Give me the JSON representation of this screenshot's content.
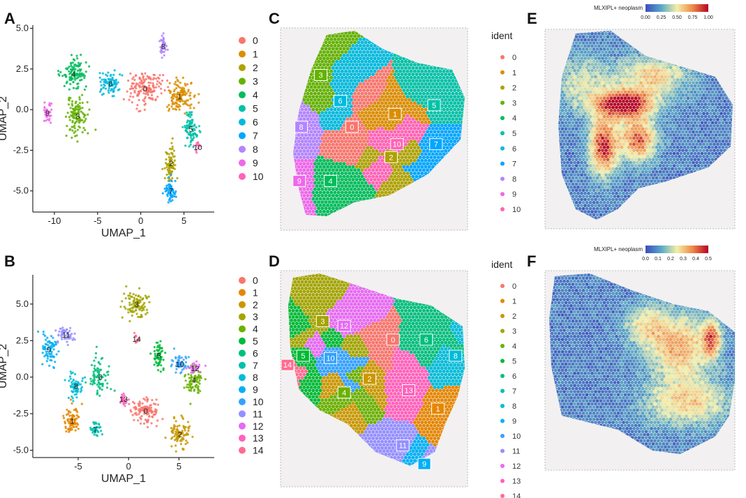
{
  "panels": {
    "A": "A",
    "B": "B",
    "C": "C",
    "D": "D",
    "E": "E",
    "F": "F"
  },
  "chart_data": [
    {
      "id": "A",
      "type": "scatter",
      "title": "",
      "xlabel": "UMAP_1",
      "ylabel": "UMAP_2",
      "xlim": [
        -12.5,
        8.5
      ],
      "ylim": [
        -6.3,
        5.2
      ],
      "xticks": [
        -10,
        -5,
        0,
        5
      ],
      "yticks": [
        -5.0,
        -2.5,
        0.0,
        2.5,
        5.0
      ],
      "ytick_labels": [
        "-5.0",
        "-2.5",
        "0.0",
        "2.5",
        "5.0"
      ],
      "xtick_labels": [
        "-10",
        "-5",
        "0",
        "5"
      ],
      "legend_position": "right",
      "clusters": [
        {
          "name": "0",
          "color": "#F8766D",
          "center": [
            0.5,
            1.3
          ],
          "spread": [
            1.8,
            0.9
          ],
          "n": 160
        },
        {
          "name": "1",
          "color": "#DB8E00",
          "center": [
            4.5,
            0.8
          ],
          "spread": [
            1.3,
            0.9
          ],
          "n": 130
        },
        {
          "name": "2",
          "color": "#AEA200",
          "center": [
            3.5,
            -3.3
          ],
          "spread": [
            0.6,
            1.1
          ],
          "n": 80
        },
        {
          "name": "3",
          "color": "#64B200",
          "center": [
            -7.3,
            -0.4
          ],
          "spread": [
            1.2,
            1.1
          ],
          "n": 110
        },
        {
          "name": "4",
          "color": "#00BD5C",
          "center": [
            -7.8,
            2.2
          ],
          "spread": [
            1.3,
            0.9
          ],
          "n": 110
        },
        {
          "name": "5",
          "color": "#00C1A7",
          "center": [
            5.8,
            -1.2
          ],
          "spread": [
            0.8,
            0.9
          ],
          "n": 80
        },
        {
          "name": "6",
          "color": "#00BADE",
          "center": [
            -3.5,
            1.6
          ],
          "spread": [
            1.2,
            0.7
          ],
          "n": 80
        },
        {
          "name": "7",
          "color": "#00A6FF",
          "center": [
            3.5,
            -5.0
          ],
          "spread": [
            0.6,
            0.6
          ],
          "n": 60
        },
        {
          "name": "8",
          "color": "#B385FF",
          "center": [
            2.6,
            3.9
          ],
          "spread": [
            0.5,
            0.6
          ],
          "n": 35
        },
        {
          "name": "9",
          "color": "#EF67EB",
          "center": [
            -10.8,
            -0.2
          ],
          "spread": [
            0.5,
            0.6
          ],
          "n": 35
        },
        {
          "name": "10",
          "color": "#FF63B6",
          "center": [
            6.6,
            -2.3
          ],
          "spread": [
            0.3,
            0.3
          ],
          "n": 12
        }
      ]
    },
    {
      "id": "B",
      "type": "scatter",
      "title": "",
      "xlabel": "UMAP_1",
      "ylabel": "UMAP_2",
      "xlim": [
        -9.5,
        8.5
      ],
      "ylim": [
        -5.5,
        7.0
      ],
      "xticks": [
        -5,
        0,
        5
      ],
      "xtick_labels": [
        "-5",
        "0",
        "5"
      ],
      "yticks": [
        -5.0,
        -2.5,
        0.0,
        2.5,
        5.0
      ],
      "ytick_labels": [
        "-5.0",
        "-2.5",
        "0.0",
        "2.5",
        "5.0"
      ],
      "legend_position": "right",
      "clusters": [
        {
          "name": "0",
          "color": "#F8766D",
          "center": [
            1.7,
            -2.3
          ],
          "spread": [
            1.3,
            0.8
          ],
          "n": 110
        },
        {
          "name": "1",
          "color": "#E58700",
          "center": [
            -5.6,
            -3.0
          ],
          "spread": [
            0.8,
            0.8
          ],
          "n": 80
        },
        {
          "name": "2",
          "color": "#C99800",
          "center": [
            5.1,
            -3.9
          ],
          "spread": [
            0.9,
            0.9
          ],
          "n": 90
        },
        {
          "name": "3",
          "color": "#A3A500",
          "center": [
            0.8,
            5.0
          ],
          "spread": [
            1.1,
            0.8
          ],
          "n": 100
        },
        {
          "name": "4",
          "color": "#6BB100",
          "center": [
            6.5,
            -0.2
          ],
          "spread": [
            0.8,
            0.9
          ],
          "n": 80
        },
        {
          "name": "5",
          "color": "#00BA38",
          "center": [
            3.0,
            1.5
          ],
          "spread": [
            0.6,
            0.9
          ],
          "n": 60
        },
        {
          "name": "6",
          "color": "#00BF7D",
          "center": [
            -2.8,
            0.0
          ],
          "spread": [
            1.0,
            1.1
          ],
          "n": 80
        },
        {
          "name": "7",
          "color": "#00C0AF",
          "center": [
            -3.3,
            -3.6
          ],
          "spread": [
            0.5,
            0.4
          ],
          "n": 40
        },
        {
          "name": "8",
          "color": "#00BCD8",
          "center": [
            -5.2,
            -0.6
          ],
          "spread": [
            0.7,
            0.8
          ],
          "n": 60
        },
        {
          "name": "9",
          "color": "#00B0F6",
          "center": [
            -7.9,
            1.9
          ],
          "spread": [
            0.8,
            1.0
          ],
          "n": 70
        },
        {
          "name": "10",
          "color": "#35A2FF",
          "center": [
            5.1,
            0.9
          ],
          "spread": [
            0.7,
            0.6
          ],
          "n": 50
        },
        {
          "name": "11",
          "color": "#9590FF",
          "center": [
            -6.2,
            2.9
          ],
          "spread": [
            0.7,
            0.5
          ],
          "n": 50
        },
        {
          "name": "12",
          "color": "#E76BF3",
          "center": [
            6.6,
            0.6
          ],
          "spread": [
            0.5,
            0.4
          ],
          "n": 30
        },
        {
          "name": "13",
          "color": "#FF62BC",
          "center": [
            -0.5,
            -1.5
          ],
          "spread": [
            0.4,
            0.4
          ],
          "n": 25
        },
        {
          "name": "14",
          "color": "#FF6C91",
          "center": [
            0.8,
            2.6
          ],
          "spread": [
            0.3,
            0.3
          ],
          "n": 15
        }
      ]
    },
    {
      "id": "C",
      "type": "heatmap",
      "title": "",
      "legend_title": "ident",
      "legend_entries": [
        "0",
        "1",
        "2",
        "3",
        "4",
        "5",
        "6",
        "7",
        "8",
        "9",
        "10"
      ],
      "legend_colors": [
        "#F8766D",
        "#DB8E00",
        "#AEA200",
        "#64B200",
        "#00BD5C",
        "#00C1A7",
        "#00BADE",
        "#00A6FF",
        "#B385FF",
        "#EF67EB",
        "#FF63B6"
      ],
      "cluster_labels": [
        {
          "name": "0",
          "pos": [
            0.38,
            0.49
          ]
        },
        {
          "name": "1",
          "pos": [
            0.6,
            0.43
          ]
        },
        {
          "name": "2",
          "pos": [
            0.58,
            0.63
          ]
        },
        {
          "name": "3",
          "pos": [
            0.22,
            0.25
          ]
        },
        {
          "name": "4",
          "pos": [
            0.27,
            0.74
          ]
        },
        {
          "name": "5",
          "pos": [
            0.8,
            0.39
          ]
        },
        {
          "name": "6",
          "pos": [
            0.32,
            0.37
          ]
        },
        {
          "name": "7",
          "pos": [
            0.81,
            0.57
          ]
        },
        {
          "name": "8",
          "pos": [
            0.12,
            0.49
          ]
        },
        {
          "name": "9",
          "pos": [
            0.11,
            0.74
          ]
        },
        {
          "name": "10",
          "pos": [
            0.61,
            0.57
          ]
        }
      ]
    },
    {
      "id": "D",
      "type": "heatmap",
      "title": "",
      "legend_title": "ident",
      "legend_entries": [
        "0",
        "1",
        "2",
        "3",
        "4",
        "5",
        "6",
        "7",
        "8",
        "9",
        "10",
        "11",
        "12",
        "13",
        "14"
      ],
      "legend_colors": [
        "#F8766D",
        "#E58700",
        "#C99800",
        "#A3A500",
        "#6BB100",
        "#00BA38",
        "#00BF7D",
        "#00C0AF",
        "#00BCD8",
        "#00B0F6",
        "#35A2FF",
        "#9590FF",
        "#E76BF3",
        "#FF62BC",
        "#FF6C91"
      ],
      "cluster_labels": [
        {
          "name": "0",
          "pos": [
            0.59,
            0.33
          ]
        },
        {
          "name": "1",
          "pos": [
            0.82,
            0.63
          ]
        },
        {
          "name": "2",
          "pos": [
            0.47,
            0.5
          ]
        },
        {
          "name": "3",
          "pos": [
            0.23,
            0.25
          ]
        },
        {
          "name": "4",
          "pos": [
            0.34,
            0.56
          ]
        },
        {
          "name": "5",
          "pos": [
            0.13,
            0.4
          ]
        },
        {
          "name": "6",
          "pos": [
            0.76,
            0.33
          ]
        },
        {
          "name": "8",
          "pos": [
            0.91,
            0.4
          ]
        },
        {
          "name": "9",
          "pos": [
            0.75,
            0.87
          ]
        },
        {
          "name": "10",
          "pos": [
            0.27,
            0.41
          ]
        },
        {
          "name": "11",
          "pos": [
            0.64,
            0.79
          ]
        },
        {
          "name": "12",
          "pos": [
            0.34,
            0.27
          ]
        },
        {
          "name": "13",
          "pos": [
            0.67,
            0.55
          ]
        },
        {
          "name": "14",
          "pos": [
            0.05,
            0.44
          ]
        }
      ]
    },
    {
      "id": "E",
      "type": "heatmap",
      "title": "MLXIPL+ neoplasm",
      "colorbar_ticks": [
        "0.00",
        "0.25",
        "0.50",
        "0.75",
        "1.00"
      ],
      "colorbar_colors": [
        "#3B4CC0",
        "#5AA8C8",
        "#F2F0A8",
        "#F08848",
        "#B40426"
      ]
    },
    {
      "id": "F",
      "type": "heatmap",
      "title": "MLXIPL+ neoplasm",
      "colorbar_ticks": [
        "0.0",
        "0.1",
        "0.2",
        "0.3",
        "0.4",
        "0.5"
      ],
      "colorbar_colors": [
        "#3B4CC0",
        "#5AA8C8",
        "#F2F0A8",
        "#F08848",
        "#B40426"
      ]
    }
  ]
}
